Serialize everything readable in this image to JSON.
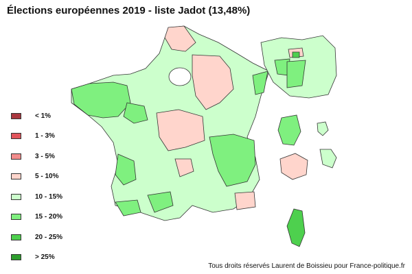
{
  "title": "Élections européennes 2019 - liste Jadot (13,48%)",
  "credit": "Tous droits réservés Laurent de Boissieu pour France-politique.fr",
  "colors": {
    "lt1": "#a9373f",
    "r1_3": "#e0545b",
    "r3_5": "#f28c8c",
    "r5_10": "#ffd5cc",
    "r10_15": "#ccffcc",
    "r15_20": "#7ff07f",
    "r20_25": "#4ed04e",
    "gt25": "#2e9e2e",
    "border": "#333333"
  },
  "legend": [
    {
      "label": "< 1%",
      "color_key": "lt1"
    },
    {
      "label": "1 - 3%",
      "color_key": "r1_3"
    },
    {
      "label": "3 - 5%",
      "color_key": "r3_5"
    },
    {
      "label": "5 - 10%",
      "color_key": "r5_10"
    },
    {
      "label": "10 - 15%",
      "color_key": "r10_15"
    },
    {
      "label": "15 - 20%",
      "color_key": "r15_20"
    },
    {
      "label": "20 - 25%",
      "color_key": "r20_25"
    },
    {
      "label": "> 25%",
      "color_key": "gt25"
    }
  ]
}
